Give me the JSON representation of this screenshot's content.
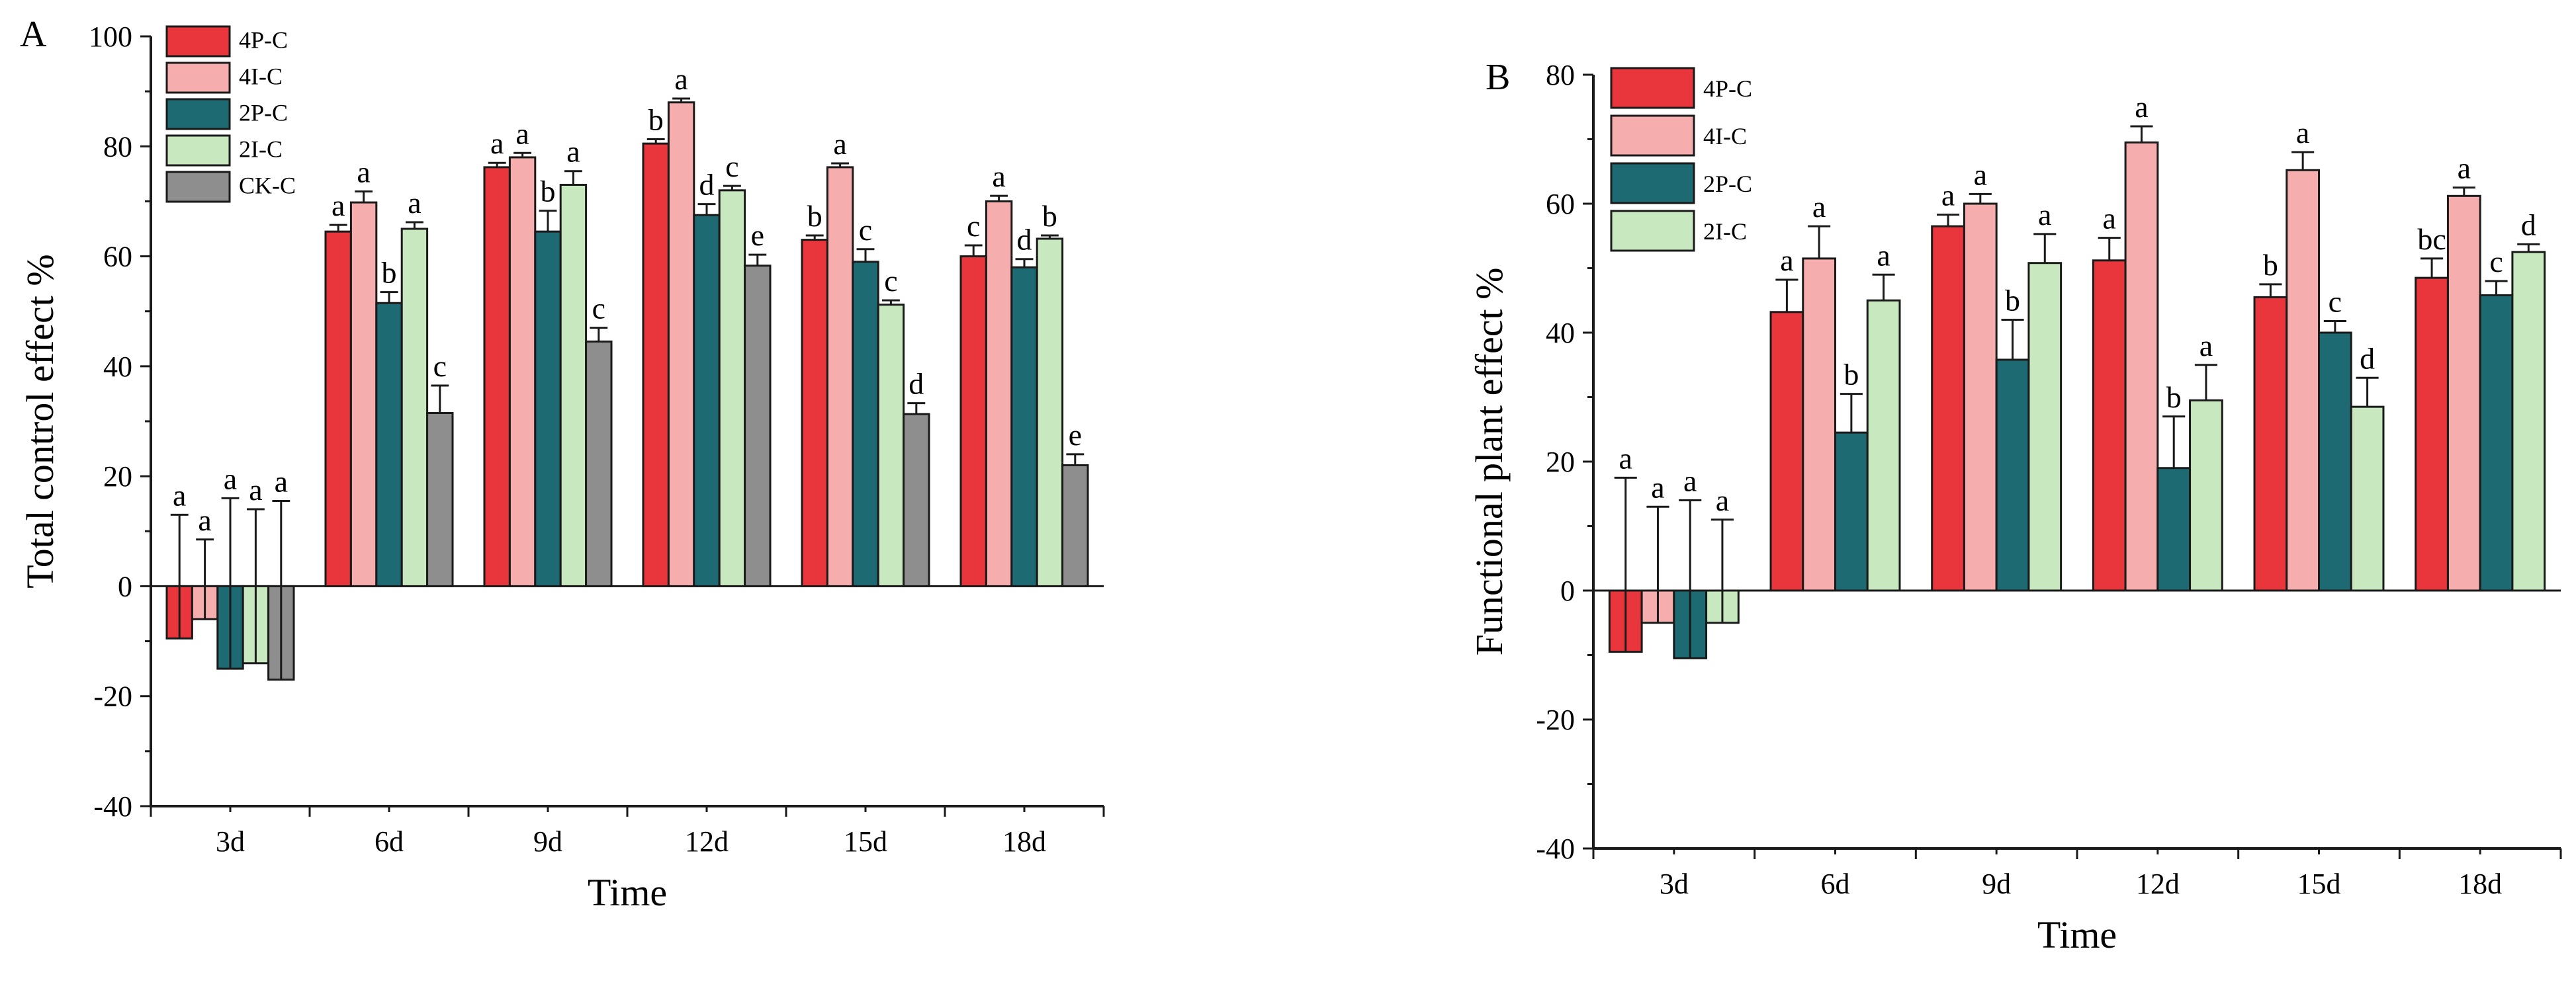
{
  "chart_data": [
    {
      "panel": "A",
      "type": "bar",
      "xlabel": "Time",
      "ylabel": "Total control effect %",
      "ylim": [
        -40,
        100
      ],
      "yticks": [
        "-40",
        "-20",
        "0",
        "20",
        "40",
        "60",
        "80",
        "100"
      ],
      "categories": [
        "3d",
        "6d",
        "9d",
        "12d",
        "15d",
        "18d"
      ],
      "legend_position": "top-left",
      "series": [
        {
          "name": "4P-C",
          "color": "#e8363c",
          "values": [
            -9.5,
            64.5,
            76.2,
            80.5,
            63.0,
            60.0
          ],
          "errors": [
            13.0,
            1.2,
            0.8,
            0.8,
            0.8,
            2.0
          ],
          "letters": [
            "a",
            "a",
            "a",
            "b",
            "b",
            "c"
          ]
        },
        {
          "name": "4I-C",
          "color": "#f5adad",
          "values": [
            -6.0,
            69.8,
            78.0,
            88.0,
            76.2,
            70.0
          ],
          "errors": [
            8.5,
            2.0,
            0.8,
            0.7,
            0.7,
            1.0
          ],
          "letters": [
            "a",
            "a",
            "a",
            "a",
            "a",
            "a"
          ]
        },
        {
          "name": "2P-C",
          "color": "#1e6a72",
          "values": [
            -15.0,
            51.5,
            64.5,
            67.5,
            59.0,
            58.0
          ],
          "errors": [
            16.0,
            2.0,
            3.8,
            2.0,
            2.3,
            1.5
          ],
          "letters": [
            "a",
            "b",
            "b",
            "d",
            "c",
            "d"
          ]
        },
        {
          "name": "2I-C",
          "color": "#c8e8c0",
          "values": [
            -14.0,
            65.0,
            73.0,
            72.0,
            51.2,
            63.2
          ],
          "errors": [
            14.0,
            1.2,
            2.5,
            0.8,
            0.8,
            0.6
          ],
          "letters": [
            "a",
            "a",
            "a",
            "c",
            "c",
            "b"
          ]
        },
        {
          "name": "CK-C",
          "color": "#8e8e8e",
          "values": [
            -17.0,
            31.5,
            44.5,
            58.3,
            31.3,
            22.0
          ],
          "errors": [
            15.5,
            5.0,
            2.5,
            2.0,
            2.0,
            2.0
          ],
          "letters": [
            "a",
            "c",
            "c",
            "e",
            "d",
            "e"
          ]
        }
      ]
    },
    {
      "panel": "B",
      "type": "bar",
      "xlabel": "Time",
      "ylabel": "Functional plant effect %",
      "ylim": [
        -40,
        80
      ],
      "yticks": [
        "-40",
        "-20",
        "0",
        "20",
        "40",
        "60",
        "80"
      ],
      "categories": [
        "3d",
        "6d",
        "9d",
        "12d",
        "15d",
        "18d"
      ],
      "legend_position": "top-left",
      "series": [
        {
          "name": "4P-C",
          "color": "#e8363c",
          "values": [
            -9.5,
            43.2,
            56.5,
            51.2,
            45.5,
            48.5
          ],
          "errors": [
            17.5,
            5.0,
            1.8,
            3.5,
            2.0,
            3.0
          ],
          "letters": [
            "a",
            "a",
            "a",
            "a",
            "b",
            "bc"
          ]
        },
        {
          "name": "4I-C",
          "color": "#f5adad",
          "values": [
            -5.0,
            51.5,
            60.0,
            69.5,
            65.2,
            61.2
          ],
          "errors": [
            13.0,
            5.0,
            1.5,
            2.5,
            2.8,
            1.3
          ],
          "letters": [
            "a",
            "a",
            "a",
            "a",
            "a",
            "a"
          ]
        },
        {
          "name": "2P-C",
          "color": "#1e6a72",
          "values": [
            -10.5,
            24.5,
            35.8,
            19.0,
            40.0,
            45.8
          ],
          "errors": [
            14.0,
            6.0,
            6.2,
            8.0,
            1.8,
            2.2
          ],
          "letters": [
            "a",
            "b",
            "b",
            "b",
            "c",
            "c"
          ]
        },
        {
          "name": "2I-C",
          "color": "#c8e8c0",
          "values": [
            -5.0,
            45.0,
            50.8,
            29.5,
            28.5,
            52.5
          ],
          "errors": [
            11.0,
            4.0,
            4.5,
            5.5,
            4.5,
            1.2
          ],
          "letters": [
            "a",
            "a",
            "a",
            "a",
            "d",
            "d"
          ]
        }
      ]
    }
  ]
}
